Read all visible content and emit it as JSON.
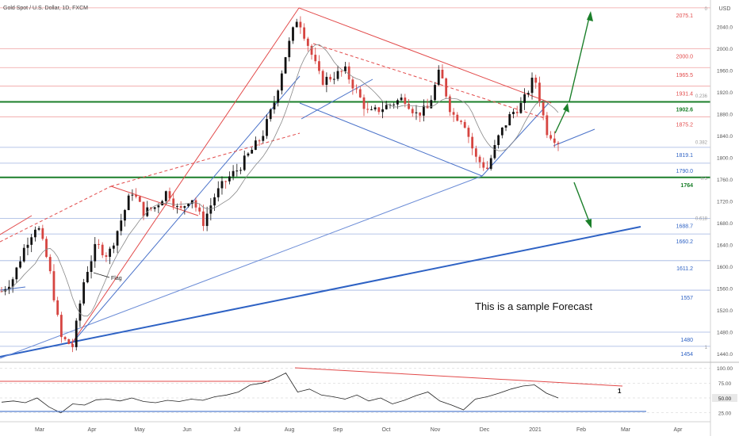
{
  "header": {
    "symbol": "Gold Spot / U.S. Dollar, 1D, FXCM"
  },
  "currency": "USD",
  "forecast_text": "This is a sample Forecast",
  "flag_label": "Flag",
  "colors": {
    "up": "#111111",
    "down": "#d64541",
    "green": "#1b7f2a",
    "blue": "#2e62c4",
    "red": "#e24a4a",
    "grid_blue": "#9fb3e0",
    "grid_red": "#f0a0a0",
    "ma": "#888888"
  },
  "chart_data": [
    {
      "type": "candlestick",
      "x_ticks": [
        "Mar",
        "Apr",
        "May",
        "Jun",
        "Jul",
        "Aug",
        "Sep",
        "Oct",
        "Nov",
        "Dec",
        "2021",
        "Feb",
        "Mar",
        "Apr"
      ],
      "ylim": [
        1440,
        2080
      ],
      "y_ticks": [
        2040,
        2000,
        1960,
        1920,
        1880,
        1840,
        1800,
        1760,
        1720,
        1680,
        1640,
        1600,
        1560,
        1520,
        1480,
        1440
      ],
      "levels": [
        {
          "label": "2075.1",
          "value": 2075.1,
          "kind": "red"
        },
        {
          "label": "2000.0",
          "value": 2000.0,
          "kind": "red"
        },
        {
          "label": "1965.5",
          "value": 1965.5,
          "kind": "red"
        },
        {
          "label": "1931.4",
          "value": 1931.4,
          "kind": "red"
        },
        {
          "label": "1902.6",
          "value": 1902.6,
          "kind": "green"
        },
        {
          "label": "1875.2",
          "value": 1875.2,
          "kind": "red"
        },
        {
          "label": "1819.1",
          "value": 1819.1,
          "kind": "blue"
        },
        {
          "label": "1790.0",
          "value": 1790.0,
          "kind": "blue"
        },
        {
          "label": "1764",
          "value": 1764,
          "kind": "green"
        },
        {
          "label": "1688.7",
          "value": 1688.7,
          "kind": "blue"
        },
        {
          "label": "1660.2",
          "value": 1660.2,
          "kind": "blue"
        },
        {
          "label": "1611.2",
          "value": 1611.2,
          "kind": "blue"
        },
        {
          "label": "1557",
          "value": 1557,
          "kind": "blue"
        },
        {
          "label": "1480",
          "value": 1480,
          "kind": "blue"
        },
        {
          "label": "1454",
          "value": 1454,
          "kind": "blue"
        }
      ],
      "fib_labels": [
        {
          "label": "0",
          "value": 2075
        },
        {
          "label": "0.236",
          "value": 1915
        },
        {
          "label": "0.382",
          "value": 1830
        },
        {
          "label": "0.5",
          "value": 1764
        },
        {
          "label": "0.618",
          "value": 1690
        },
        {
          "label": "1",
          "value": 1454
        }
      ],
      "price_path": [
        [
          "Mar",
          1555
        ],
        [
          "Mar",
          1580
        ],
        [
          "Mar",
          1640
        ],
        [
          "Mar",
          1680
        ],
        [
          "Mar",
          1600
        ],
        [
          "Mar",
          1470
        ],
        [
          "Mar",
          1454
        ],
        [
          "Apr",
          1580
        ],
        [
          "Apr",
          1640
        ],
        [
          "Apr",
          1620
        ],
        [
          "Apr",
          1680
        ],
        [
          "Apr",
          1740
        ],
        [
          "May",
          1700
        ],
        [
          "May",
          1710
        ],
        [
          "May",
          1740
        ],
        [
          "May",
          1700
        ],
        [
          "Jun",
          1730
        ],
        [
          "Jun",
          1680
        ],
        [
          "Jun",
          1730
        ],
        [
          "Jun",
          1760
        ],
        [
          "Jul",
          1780
        ],
        [
          "Jul",
          1810
        ],
        [
          "Jul",
          1840
        ],
        [
          "Jul",
          1900
        ],
        [
          "Aug",
          1990
        ],
        [
          "Aug",
          2060
        ],
        [
          "Aug",
          2000
        ],
        [
          "Aug",
          1940
        ],
        [
          "Sep",
          1950
        ],
        [
          "Sep",
          1960
        ],
        [
          "Sep",
          1920
        ],
        [
          "Sep",
          1880
        ],
        [
          "Oct",
          1890
        ],
        [
          "Oct",
          1900
        ],
        [
          "Oct",
          1910
        ],
        [
          "Oct",
          1880
        ],
        [
          "Nov",
          1890
        ],
        [
          "Nov",
          1960
        ],
        [
          "Nov",
          1880
        ],
        [
          "Nov",
          1870
        ],
        [
          "Dec",
          1800
        ],
        [
          "Dec",
          1780
        ],
        [
          "Dec",
          1840
        ],
        [
          "Dec",
          1880
        ],
        [
          "2021",
          1900
        ],
        [
          "2021",
          1950
        ],
        [
          "2021",
          1850
        ],
        [
          "2021",
          1830
        ]
      ]
    },
    {
      "type": "line",
      "name": "",
      "ylim": [
        10,
        110
      ],
      "y_ticks": [
        100,
        75,
        50,
        25
      ],
      "values": [
        43,
        45,
        42,
        50,
        35,
        25,
        40,
        38,
        47,
        48,
        45,
        50,
        44,
        42,
        46,
        44,
        48,
        46,
        52,
        55,
        60,
        72,
        75,
        82,
        92,
        60,
        65,
        55,
        52,
        48,
        55,
        45,
        50,
        40,
        46,
        54,
        60,
        45,
        38,
        30,
        48,
        52,
        58,
        65,
        70,
        72,
        58,
        50
      ],
      "level_label": "50.00",
      "marker_label": "1"
    }
  ]
}
